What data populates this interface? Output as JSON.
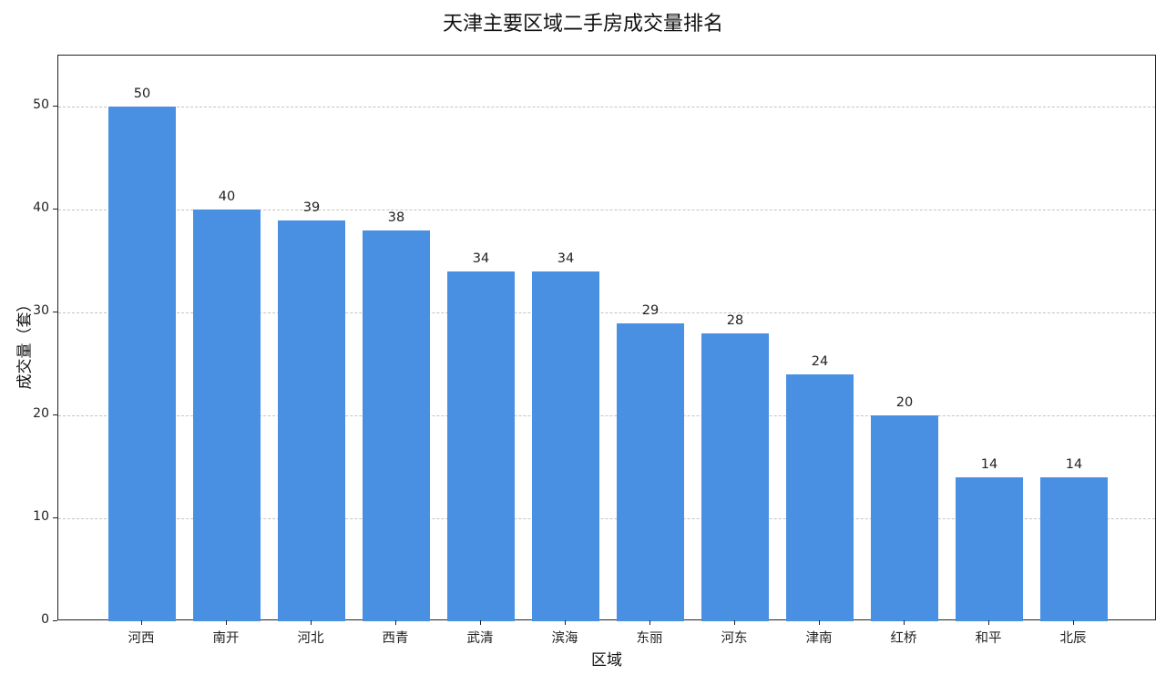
{
  "chart_data": {
    "type": "bar",
    "title": "天津主要区域二手房成交量排名",
    "xlabel": "区域",
    "ylabel": "成交量（套）",
    "categories": [
      "河西",
      "南开",
      "河北",
      "西青",
      "武清",
      "滨海",
      "东丽",
      "河东",
      "津南",
      "红桥",
      "和平",
      "北辰"
    ],
    "values": [
      50,
      40,
      39,
      38,
      34,
      34,
      29,
      28,
      24,
      20,
      14,
      14
    ],
    "ylim": [
      0,
      55
    ],
    "yticks": [
      "0",
      "10",
      "20",
      "30",
      "40",
      "50"
    ],
    "grid": "y-dashed",
    "legend": null,
    "bar_color": "#4a90e2",
    "data_labels": [
      "50",
      "40",
      "39",
      "38",
      "34",
      "34",
      "29",
      "28",
      "24",
      "20",
      "14",
      "14"
    ]
  }
}
